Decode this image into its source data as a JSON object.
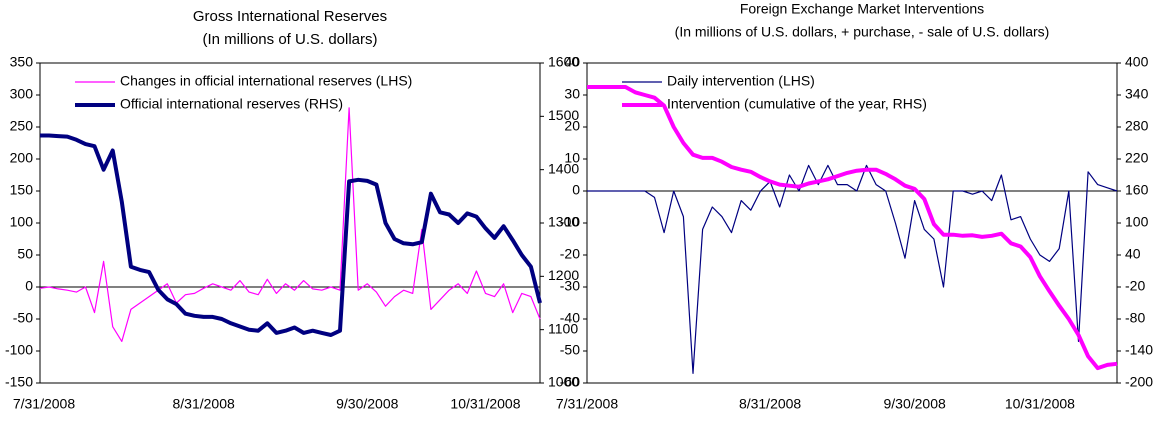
{
  "chart_data": [
    {
      "type": "line",
      "title": "Gross International Reserves",
      "subtitle": "(In millions of U.S. dollars)",
      "categories": [
        "7/31/2008",
        null,
        null,
        null,
        null,
        null,
        null,
        null,
        null,
        null,
        null,
        null,
        null,
        null,
        null,
        null,
        null,
        null,
        "8/31/2008",
        null,
        null,
        null,
        null,
        null,
        null,
        null,
        null,
        null,
        null,
        null,
        null,
        null,
        null,
        null,
        null,
        null,
        "9/30/2008",
        null,
        null,
        null,
        null,
        null,
        null,
        null,
        null,
        null,
        null,
        null,
        null,
        "10/31/2008",
        null,
        null,
        null,
        null,
        null,
        null
      ],
      "ylim": [
        -150,
        350
      ],
      "yticks": [
        -150,
        -100,
        -50,
        0,
        50,
        100,
        150,
        200,
        250,
        300,
        350
      ],
      "y2lim": [
        1000,
        1600
      ],
      "y2ticks": [
        1000,
        1100,
        1200,
        1300,
        1400,
        1500,
        1600
      ],
      "legend": "upper left",
      "series": [
        {
          "name": "Changes in official international reserves (LHS)",
          "color": "#ff00ff",
          "axis": "y",
          "values": [
            -2,
            0,
            -3,
            -5,
            -8,
            0,
            -40,
            40,
            -62,
            -85,
            -35,
            -25,
            -15,
            -5,
            5,
            -25,
            -12,
            -10,
            -2,
            5,
            0,
            -5,
            10,
            -8,
            -12,
            12,
            -10,
            5,
            -5,
            10,
            -3,
            -5,
            0,
            -5,
            280,
            -5,
            5,
            -8,
            -30,
            -15,
            -5,
            -10,
            90,
            -35,
            -20,
            -5,
            5,
            -10,
            25,
            -10,
            -15,
            5,
            -40,
            -10,
            -15,
            -50
          ]
        },
        {
          "name": "Official international reserves (RHS)",
          "color": "#000080",
          "axis": "y2",
          "values": [
            1464,
            1464,
            1463,
            1462,
            1456,
            1448,
            1444,
            1400,
            1436,
            1340,
            1218,
            1212,
            1208,
            1175,
            1157,
            1148,
            1130,
            1126,
            1124,
            1124,
            1120,
            1112,
            1106,
            1100,
            1098,
            1112,
            1094,
            1098,
            1104,
            1094,
            1098,
            1094,
            1090,
            1098,
            1378,
            1381,
            1379,
            1372,
            1300,
            1270,
            1262,
            1260,
            1264,
            1355,
            1320,
            1316,
            1300,
            1318,
            1312,
            1290,
            1272,
            1294,
            1268,
            1240,
            1218,
            1150
          ]
        }
      ]
    },
    {
      "type": "line",
      "title": "Foreign Exchange Market Interventions",
      "subtitle": "(In millions of U.S. dollars, + purchase, - sale of U.S. dollars)",
      "categories": [
        "7/31/2008",
        null,
        null,
        null,
        null,
        null,
        null,
        null,
        null,
        null,
        null,
        null,
        null,
        null,
        null,
        null,
        null,
        null,
        null,
        "8/31/2008",
        null,
        null,
        null,
        null,
        null,
        null,
        null,
        null,
        null,
        null,
        null,
        null,
        null,
        null,
        "9/30/2008",
        null,
        null,
        null,
        null,
        null,
        null,
        null,
        null,
        null,
        null,
        null,
        null,
        "10/31/2008",
        null,
        null,
        null,
        null,
        null,
        null,
        null,
        null
      ],
      "ylim": [
        -60,
        40
      ],
      "yticks": [
        -60,
        -50,
        -40,
        -30,
        -20,
        -10,
        0,
        10,
        20,
        30,
        40
      ],
      "y2lim": [
        -200,
        400
      ],
      "y2ticks": [
        -200,
        -140,
        -80,
        -20,
        40,
        100,
        160,
        220,
        280,
        340,
        400
      ],
      "legend": "upper left",
      "series": [
        {
          "name": "Daily intervention (LHS)",
          "color": "#000080",
          "axis": "y",
          "values": [
            0,
            0,
            0,
            0,
            0,
            0,
            0,
            -2,
            -13,
            0,
            -8,
            -57,
            -12,
            -5,
            -8,
            -13,
            -3,
            -6,
            0,
            3,
            -5,
            5,
            0,
            8,
            2,
            8,
            2,
            2,
            0,
            8,
            2,
            0,
            -10,
            -21,
            -3,
            -12,
            -15,
            -30,
            0,
            0,
            -1,
            0,
            -3,
            5,
            -9,
            -8,
            -15,
            -20,
            -22,
            -18,
            0,
            -47,
            6,
            2,
            1,
            0
          ]
        },
        {
          "name": "Intervention (cumulative of the year, RHS)",
          "color": "#ff00ff",
          "axis": "y2",
          "values": [
            355,
            355,
            355,
            355,
            355,
            345,
            340,
            335,
            320,
            280,
            250,
            228,
            222,
            222,
            215,
            205,
            200,
            196,
            186,
            178,
            172,
            170,
            168,
            174,
            178,
            182,
            188,
            194,
            198,
            200,
            200,
            192,
            182,
            170,
            164,
            145,
            98,
            78,
            78,
            76,
            77,
            74,
            76,
            80,
            62,
            56,
            36,
            0,
            -28,
            -55,
            -80,
            -110,
            -150,
            -172,
            -166,
            -164
          ]
        }
      ]
    }
  ]
}
